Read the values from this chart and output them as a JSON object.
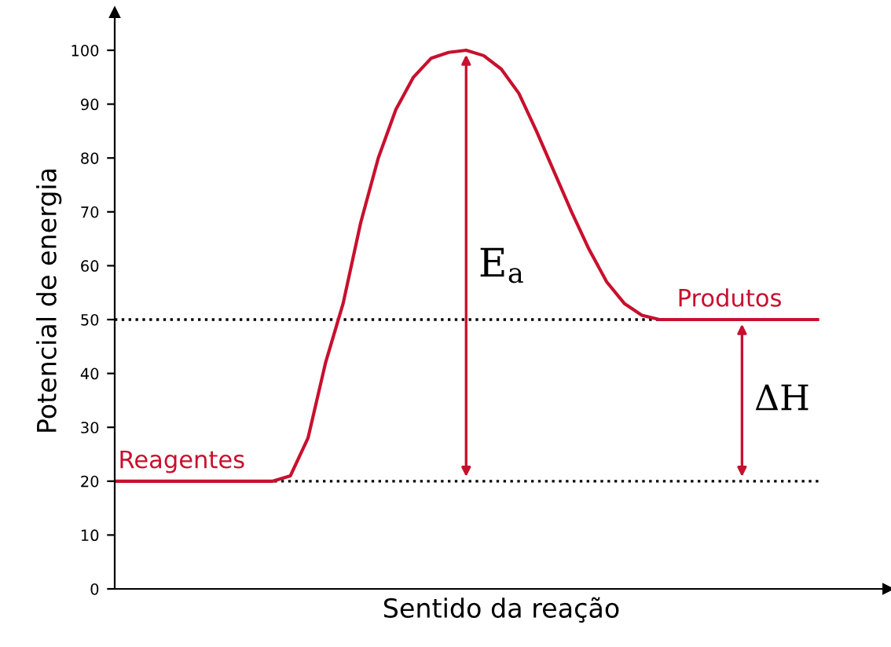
{
  "chart_data": {
    "type": "line",
    "xlabel": "Sentido da reação",
    "ylabel": "Potencial de energia",
    "categories": [
      null,
      null,
      null,
      null,
      null,
      null,
      null,
      null,
      null,
      null,
      null,
      null,
      null,
      null,
      null,
      null,
      null,
      null,
      null,
      null,
      null,
      null,
      null,
      null,
      null,
      null,
      null,
      null,
      null,
      null,
      null,
      null,
      null,
      null,
      null,
      null,
      null,
      null,
      null,
      null,
      null
    ],
    "series": [
      {
        "color": "#c8102e",
        "values": [
          20,
          20,
          20,
          20,
          20,
          20,
          20,
          20,
          20,
          20,
          21,
          28,
          42,
          53,
          68,
          80,
          89,
          95,
          98.5,
          99.6,
          100,
          99,
          96.5,
          92,
          85,
          77.5,
          70,
          63,
          57,
          53,
          50.8,
          50,
          50,
          50,
          50,
          50,
          50,
          50,
          50,
          50,
          50
        ]
      }
    ],
    "ylim": [
      0,
      107
    ],
    "yticks": [
      0,
      10,
      20,
      30,
      40,
      50,
      60,
      70,
      80,
      90,
      100
    ],
    "tick_labels": "y",
    "grid": false,
    "marker": "none",
    "line_style": "solid",
    "ref_lines": [
      {
        "axis": "y",
        "value": 20,
        "color": "#000000",
        "line_style": "dotted"
      },
      {
        "axis": "y",
        "value": 50,
        "color": "#000000",
        "line_style": "dotted"
      }
    ],
    "annotations": [
      {
        "text": "Reagentes",
        "y": 20
      },
      {
        "text": "Produtos",
        "y": 50
      },
      "E$_{a}$",
      "ΔH"
    ]
  }
}
